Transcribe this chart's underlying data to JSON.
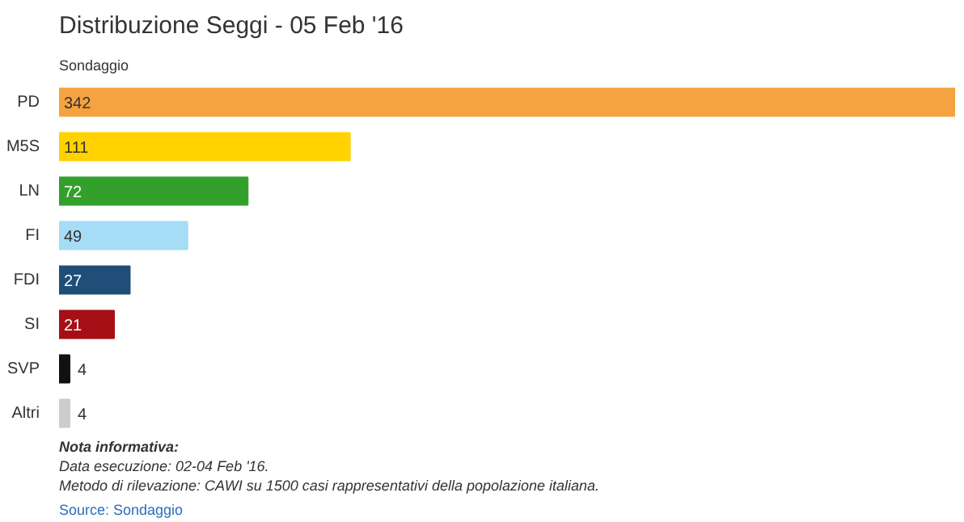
{
  "chart_data": {
    "type": "bar",
    "orientation": "horizontal",
    "title": "Distribuzione Seggi - 05 Feb '16",
    "subtitle": "Sondaggio",
    "categories": [
      "PD",
      "M5S",
      "LN",
      "FI",
      "FDI",
      "SI",
      "SVP",
      "Altri"
    ],
    "values": [
      342,
      111,
      72,
      49,
      27,
      21,
      4,
      4
    ],
    "colors": [
      "#f4a340",
      "#ffd200",
      "#33a02c",
      "#a6dcf5",
      "#1f4e79",
      "#a50f15",
      "#111111",
      "#cccccc"
    ],
    "data_labels": true,
    "grid": false,
    "annotations": [
      "Nota informativa:",
      "Data esecuzione: 02-04 Feb '16.",
      "Metodo di rilevazione: CAWI su 1500 casi rappresentativi della popolazione italiana.",
      "Source: Sondaggio"
    ]
  }
}
